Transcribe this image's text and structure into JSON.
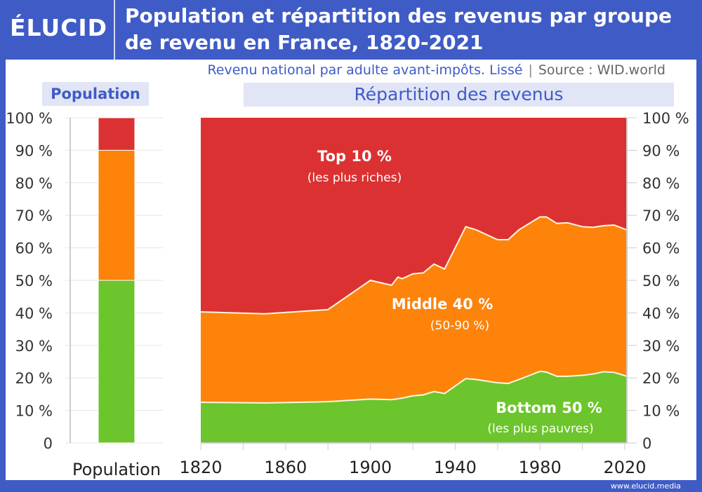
{
  "header": {
    "logo": "ÉLUCID",
    "title": "Population et répartition des revenus par groupe de revenu en France, 1820-2021",
    "subtitle": "Revenu national par adulte avant-impôts. Lissé",
    "source": "Source : WID.world",
    "separator": "|"
  },
  "panels": {
    "population": "Population",
    "repartition": "Répartition des revenus"
  },
  "footer": "www.elucid.media",
  "colors": {
    "top10": "#dc3132",
    "middle40": "#fd830b",
    "bottom50": "#6cc52c",
    "brand": "#3f5bc6"
  },
  "chart_data": [
    {
      "type": "bar",
      "stacked": true,
      "categories": [
        "Population"
      ],
      "xlabel": "Population",
      "ylim": [
        0,
        100
      ],
      "yticks": [
        "0",
        "10 %",
        "20 %",
        "30 %",
        "40 %",
        "50 %",
        "60 %",
        "70 %",
        "80 %",
        "90 %",
        "100 %"
      ],
      "series": [
        {
          "key": "bottom50",
          "values": [
            50
          ]
        },
        {
          "key": "middle40",
          "values": [
            40
          ]
        },
        {
          "key": "top10",
          "values": [
            10
          ]
        }
      ],
      "grid": true
    },
    {
      "type": "area",
      "stacked": true,
      "xlim": [
        1820,
        2021
      ],
      "ylim": [
        0,
        100
      ],
      "xticks": [
        "1820",
        "1860",
        "1900",
        "1940",
        "1980",
        "2020"
      ],
      "yticks": [
        "0",
        "10 %",
        "20 %",
        "30 %",
        "40 %",
        "50 %",
        "60 %",
        "70 %",
        "80 %",
        "90 %",
        "100 %"
      ],
      "x": [
        1820,
        1850,
        1880,
        1900,
        1910,
        1913,
        1915,
        1920,
        1925,
        1930,
        1935,
        1945,
        1950,
        1960,
        1965,
        1970,
        1980,
        1983,
        1988,
        1993,
        2000,
        2005,
        2010,
        2015,
        2021
      ],
      "series": [
        {
          "key": "bottom50",
          "label": "Bottom 50 %",
          "sublabel": "(les plus pauvres)",
          "values": [
            12.5,
            12.3,
            12.7,
            13.5,
            13.3,
            13.6,
            13.8,
            14.5,
            14.8,
            15.8,
            15.2,
            19.8,
            19.5,
            18.5,
            18.3,
            19.5,
            22.0,
            21.8,
            20.5,
            20.5,
            20.8,
            21.2,
            21.9,
            21.7,
            20.5
          ]
        },
        {
          "key": "middle40",
          "label": "Middle 40 %",
          "sublabel": "(50-90 %)",
          "values": [
            27.8,
            27.4,
            28.3,
            36.5,
            35.2,
            37.4,
            36.7,
            37.5,
            37.5,
            39.2,
            38.3,
            46.7,
            46.0,
            44.0,
            44.2,
            46.0,
            47.5,
            47.7,
            47.0,
            47.2,
            45.7,
            45.1,
            44.9,
            45.3,
            45.0
          ]
        },
        {
          "key": "top10",
          "label": "Top 10 %",
          "sublabel": "(les plus riches)",
          "values": [
            59.7,
            60.3,
            59.0,
            50.0,
            51.5,
            49.0,
            49.5,
            48.0,
            47.7,
            45.0,
            46.5,
            33.5,
            34.5,
            37.5,
            37.5,
            34.5,
            30.5,
            30.5,
            32.5,
            32.3,
            33.5,
            33.7,
            33.2,
            33.0,
            34.5
          ]
        }
      ],
      "grid": false
    }
  ]
}
